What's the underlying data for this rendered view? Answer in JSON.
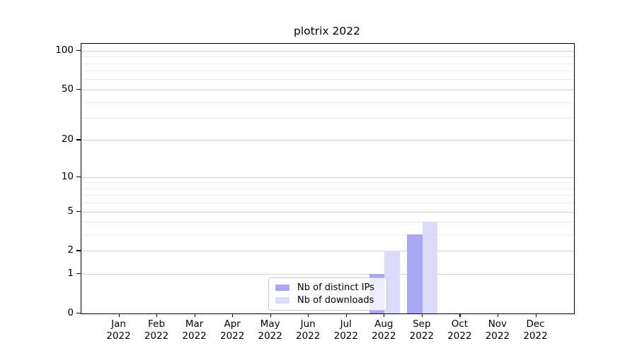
{
  "page": {
    "background": "#ffffff"
  },
  "chart_data": {
    "type": "bar",
    "title": "plotrix 2022",
    "categories": [
      "Jan 2022",
      "Feb 2022",
      "Mar 2022",
      "Apr 2022",
      "May 2022",
      "Jun 2022",
      "Jul 2022",
      "Aug 2022",
      "Sep 2022",
      "Oct 2022",
      "Nov 2022",
      "Dec 2022"
    ],
    "series": [
      {
        "name": "Nb of distinct IPs",
        "color": "#a9a7f6",
        "values": [
          0,
          0,
          0,
          0,
          0,
          0,
          0,
          1,
          3,
          0,
          0,
          0
        ]
      },
      {
        "name": "Nb of downloads",
        "color": "#dcdbfa",
        "values": [
          0,
          0,
          0,
          0,
          0,
          0,
          0,
          2,
          4,
          0,
          0,
          0
        ]
      }
    ],
    "xlabel": "",
    "ylabel": "",
    "yscale": "log1p",
    "ylim": [
      0,
      113
    ],
    "y_major_ticks": [
      0,
      1,
      2,
      5,
      10,
      20,
      50,
      100
    ],
    "y_minor_gridlines": [
      3,
      4,
      6,
      7,
      8,
      9,
      30,
      40,
      60,
      70,
      80,
      90
    ],
    "grid": true,
    "legend_position": "inside-bottom-center",
    "axis_color": "#000000",
    "major_grid_color": "#cdcdcd",
    "minor_grid_color": "#ebebeb",
    "legend_bg": "rgba(255,255,255,0.8)",
    "legend_border": "#c8c8c8"
  }
}
